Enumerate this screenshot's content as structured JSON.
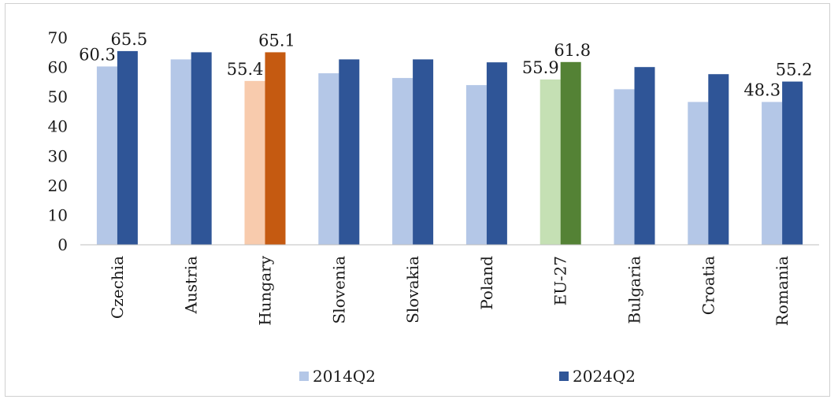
{
  "chart_data": {
    "type": "bar",
    "categories": [
      "Czechia",
      "Austria",
      "Hungary",
      "Slovenia",
      "Slovakia",
      "Poland",
      "EU-27",
      "Bulgaria",
      "Croatia",
      "Romania"
    ],
    "series": [
      {
        "name": "2014Q2",
        "color": "#b4c7e7",
        "values": [
          60.3,
          62.7,
          55.4,
          58.0,
          56.4,
          54.0,
          55.9,
          52.6,
          48.3,
          48.3
        ]
      },
      {
        "name": "2024Q2",
        "color": "#2f5597",
        "values": [
          65.5,
          65.1,
          65.1,
          62.7,
          62.7,
          61.7,
          61.8,
          60.1,
          57.7,
          55.2
        ]
      }
    ],
    "highlight_colors": {
      "Hungary": [
        "#f8cbad",
        "#c55a11"
      ],
      "EU-27": [
        "#c5e0b4",
        "#548235"
      ]
    },
    "data_labels": [
      {
        "category": "Czechia",
        "series": 0,
        "text": "60.3"
      },
      {
        "category": "Czechia",
        "series": 1,
        "text": "65.5"
      },
      {
        "category": "Hungary",
        "series": 0,
        "text": "55.4"
      },
      {
        "category": "Hungary",
        "series": 1,
        "text": "65.1"
      },
      {
        "category": "EU-27",
        "series": 0,
        "text": "55.9"
      },
      {
        "category": "EU-27",
        "series": 1,
        "text": "61.8"
      },
      {
        "category": "Romania",
        "series": 0,
        "text": "48.3"
      },
      {
        "category": "Romania",
        "series": 1,
        "text": "55.2"
      }
    ],
    "yticks": [
      "0",
      "10",
      "20",
      "30",
      "40",
      "50",
      "60",
      "70"
    ],
    "ylim": [
      0,
      70
    ],
    "grid": false,
    "legend_position": "bottom",
    "title": "",
    "xlabel": "",
    "ylabel": ""
  }
}
